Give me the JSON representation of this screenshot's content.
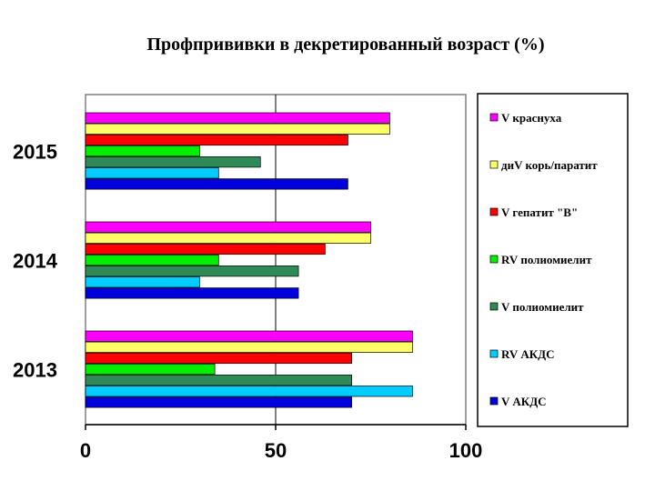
{
  "chart_data": {
    "type": "bar",
    "orientation": "horizontal",
    "title": "Профпрививки в декретированный возраст (%)",
    "categories": [
      "2015",
      "2014",
      "2013"
    ],
    "xlim": [
      0,
      100
    ],
    "xticks": [
      "0",
      "50",
      "100"
    ],
    "grid": "vertical",
    "legend_position": "right",
    "series": [
      {
        "name": "V краснуха",
        "color": "#ff00ff",
        "values": [
          80,
          75,
          86
        ]
      },
      {
        "name": "диV корь/паратит",
        "color": "#ffff66",
        "values": [
          80,
          75,
          86
        ]
      },
      {
        "name": "V гепатит \"В\"",
        "color": "#ff0000",
        "values": [
          69,
          63,
          70
        ]
      },
      {
        "name": "RV полиомиелит",
        "color": "#00ee00",
        "values": [
          30,
          35,
          34
        ]
      },
      {
        "name": "V полиомиелит",
        "color": "#2e8b57",
        "values": [
          46,
          56,
          70
        ]
      },
      {
        "name": "RV АКДС",
        "color": "#00ccff",
        "values": [
          35,
          30,
          86
        ]
      },
      {
        "name": "V АКДС",
        "color": "#0000dd",
        "values": [
          69,
          56,
          70
        ]
      }
    ]
  }
}
